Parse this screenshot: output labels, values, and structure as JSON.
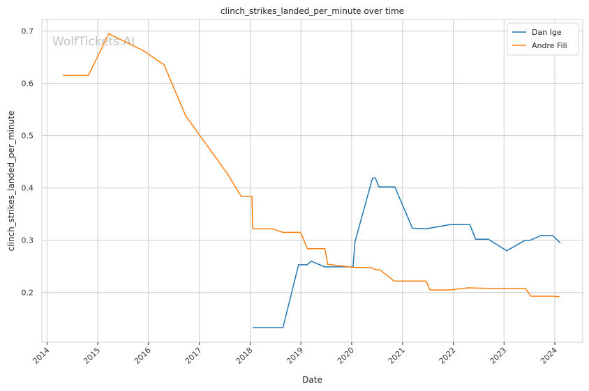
{
  "chart_data": {
    "type": "line",
    "title": "clinch_strikes_landed_per_minute over time",
    "xlabel": "Date",
    "ylabel": "clinch_strikes_landed_per_minute",
    "watermark": "WolfTickets.AI",
    "x_ticks": [
      "2014",
      "2015",
      "2016",
      "2017",
      "2018",
      "2019",
      "2020",
      "2021",
      "2022",
      "2023",
      "2024"
    ],
    "y_ticks": [
      "0.2",
      "0.3",
      "0.4",
      "0.5",
      "0.6",
      "0.7"
    ],
    "xlim": [
      "2013-11-25",
      "2024-07-20"
    ],
    "ylim": [
      0.105,
      0.722
    ],
    "grid": true,
    "legend_position": "top-right",
    "series": [
      {
        "name": "Dan Ige",
        "color": "#1f77b4",
        "points": [
          [
            "2018-01-20",
            0.133
          ],
          [
            "2018-08-25",
            0.133
          ],
          [
            "2018-12-15",
            0.253
          ],
          [
            "2019-02-15",
            0.253
          ],
          [
            "2019-03-16",
            0.26
          ],
          [
            "2019-06-22",
            0.249
          ],
          [
            "2020-01-11",
            0.249
          ],
          [
            "2020-01-25",
            0.297
          ],
          [
            "2020-05-30",
            0.419
          ],
          [
            "2020-06-20",
            0.419
          ],
          [
            "2020-07-15",
            0.402
          ],
          [
            "2020-11-07",
            0.402
          ],
          [
            "2021-03-13",
            0.323
          ],
          [
            "2021-06-19",
            0.322
          ],
          [
            "2021-12-11",
            0.33
          ],
          [
            "2022-04-30",
            0.33
          ],
          [
            "2022-06-11",
            0.302
          ],
          [
            "2022-09-10",
            0.302
          ],
          [
            "2023-01-21",
            0.28
          ],
          [
            "2023-06-03",
            0.3
          ],
          [
            "2023-07-08",
            0.3
          ],
          [
            "2023-09-23",
            0.309
          ],
          [
            "2023-12-16",
            0.309
          ],
          [
            "2024-02-10",
            0.295
          ]
        ]
      },
      {
        "name": "Andre Fili",
        "color": "#ff7f0e",
        "points": [
          [
            "2014-04-26",
            0.615
          ],
          [
            "2014-10-25",
            0.615
          ],
          [
            "2015-03-21",
            0.695
          ],
          [
            "2015-11-28",
            0.662
          ],
          [
            "2016-04-23",
            0.635
          ],
          [
            "2016-09-24",
            0.538
          ],
          [
            "2017-07-22",
            0.427
          ],
          [
            "2017-10-28",
            0.384
          ],
          [
            "2018-01-14",
            0.384
          ],
          [
            "2018-01-20",
            0.322
          ],
          [
            "2018-06-09",
            0.322
          ],
          [
            "2018-08-25",
            0.315
          ],
          [
            "2018-12-29",
            0.315
          ],
          [
            "2019-02-17",
            0.284
          ],
          [
            "2019-06-22",
            0.284
          ],
          [
            "2019-07-13",
            0.254
          ],
          [
            "2019-12-14",
            0.249
          ],
          [
            "2020-01-25",
            0.248
          ],
          [
            "2020-05-16",
            0.248
          ],
          [
            "2020-06-20",
            0.244
          ],
          [
            "2020-07-25",
            0.243
          ],
          [
            "2020-10-31",
            0.222
          ],
          [
            "2021-06-19",
            0.222
          ],
          [
            "2021-07-17",
            0.205
          ],
          [
            "2021-12-11",
            0.205
          ],
          [
            "2022-04-16",
            0.209
          ],
          [
            "2022-09-17",
            0.208
          ],
          [
            "2023-06-03",
            0.208
          ],
          [
            "2023-07-15",
            0.193
          ],
          [
            "2023-12-16",
            0.193
          ],
          [
            "2024-02-03",
            0.192
          ]
        ]
      }
    ]
  }
}
